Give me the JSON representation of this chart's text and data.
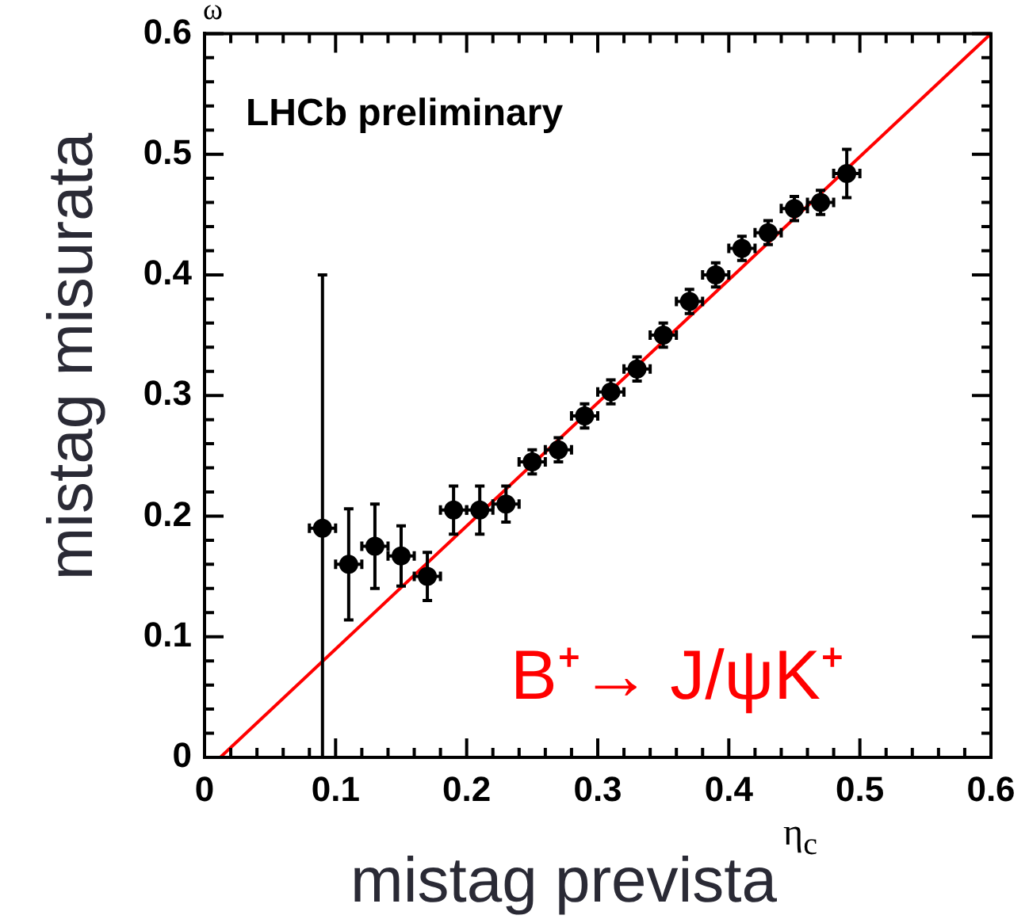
{
  "chart_data": {
    "type": "scatter",
    "xlabel": "mistag prevista",
    "ylabel": "mistag misurata",
    "annotations": [
      "LHCb preliminary",
      "B⁺→ J/ψK⁺",
      "ω",
      "η$_{c}$"
    ],
    "xlim": [
      0,
      0.6
    ],
    "ylim": [
      0,
      0.6
    ],
    "xticks": [
      0,
      0.1,
      0.2,
      0.3,
      0.4,
      0.5,
      0.6
    ],
    "yticks": [
      0,
      0.1,
      0.2,
      0.3,
      0.4,
      0.5,
      0.6
    ],
    "grid": false,
    "legend": false,
    "series": [
      {
        "color": "#000000",
        "marker": "circle",
        "x": [
          0.09,
          0.11,
          0.13,
          0.15,
          0.17,
          0.19,
          0.21,
          0.23,
          0.25,
          0.27,
          0.29,
          0.31,
          0.33,
          0.35,
          0.37,
          0.39,
          0.41,
          0.43,
          0.45,
          0.47,
          0.49
        ],
        "values": [
          0.19,
          0.16,
          0.175,
          0.167,
          0.15,
          0.205,
          0.205,
          0.21,
          0.245,
          0.255,
          0.283,
          0.303,
          0.322,
          0.35,
          0.378,
          0.4,
          0.422,
          0.435,
          0.455,
          0.46,
          0.484
        ],
        "errors": [
          [
            0,
            0.4
          ],
          0.046,
          0.035,
          0.025,
          0.02,
          0.02,
          0.02,
          0.015,
          0.01,
          0.01,
          0.01,
          0.01,
          0.01,
          0.01,
          0.01,
          0.01,
          0.01,
          0.01,
          0.01,
          0.01,
          0.02
        ],
        "xerrors": [
          0.01,
          0.01,
          0.01,
          0.01,
          0.01,
          0.01,
          0.01,
          0.01,
          0.01,
          0.01,
          0.01,
          0.01,
          0.01,
          0.01,
          0.01,
          0.01,
          0.01,
          0.01,
          0.01,
          0.01,
          0.01
        ]
      },
      {
        "type": "line",
        "color": "#ff0000",
        "marker": "none",
        "line_style": "solid",
        "x": [
          0.012,
          0.6
        ],
        "values": [
          0,
          0.6
        ]
      }
    ]
  }
}
